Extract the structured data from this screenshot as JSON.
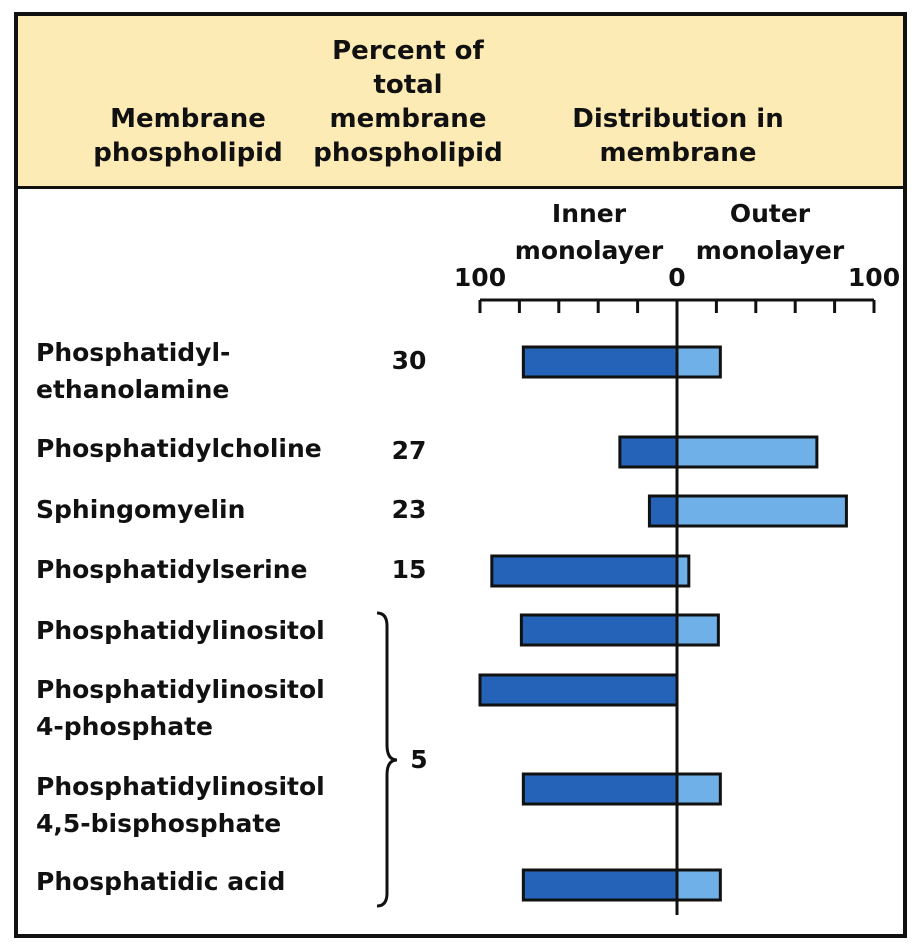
{
  "header": {
    "col1": "Membrane\nphospholipid",
    "col2": "Percent of\ntotal\nmembrane\nphospholipid",
    "col3": "Distribution in\nmembrane"
  },
  "colors": {
    "header_bg": "#fcebb4",
    "inner_bar": "#2563b8",
    "outer_bar": "#6fb0e8",
    "outline": "#111111"
  },
  "chart_data": {
    "type": "bar",
    "orientation": "horizontal-diverging",
    "axis": {
      "inner_label": "Inner\nmonolayer",
      "outer_label": "Outer\nmonolayer",
      "ticks": [
        "100",
        "0",
        "100"
      ],
      "range_inner": [
        0,
        100
      ],
      "range_outer": [
        0,
        100
      ]
    },
    "rows": [
      {
        "label": "Phosphatidyl-\nethanolamine",
        "percent": "30",
        "inner": 78,
        "outer": 22
      },
      {
        "label": "Phosphatidylcholine",
        "percent": "27",
        "inner": 29,
        "outer": 71
      },
      {
        "label": "Sphingomyelin",
        "percent": "23",
        "inner": 14,
        "outer": 86
      },
      {
        "label": "Phosphatidylserine",
        "percent": "15",
        "inner": 94,
        "outer": 6
      },
      {
        "label": "Phosphatidylinositol",
        "percent": "",
        "inner": 79,
        "outer": 21
      },
      {
        "label": "Phosphatidylinositol\n4-phosphate",
        "percent": "",
        "inner": 100,
        "outer": 0
      },
      {
        "label": "Phosphatidylinositol\n4,5-bisphosphate",
        "percent": "",
        "inner": 78,
        "outer": 22
      },
      {
        "label": "Phosphatidic acid",
        "percent": "",
        "inner": 78,
        "outer": 22
      }
    ],
    "group_percent": "5",
    "group_rows": [
      4,
      7
    ]
  }
}
